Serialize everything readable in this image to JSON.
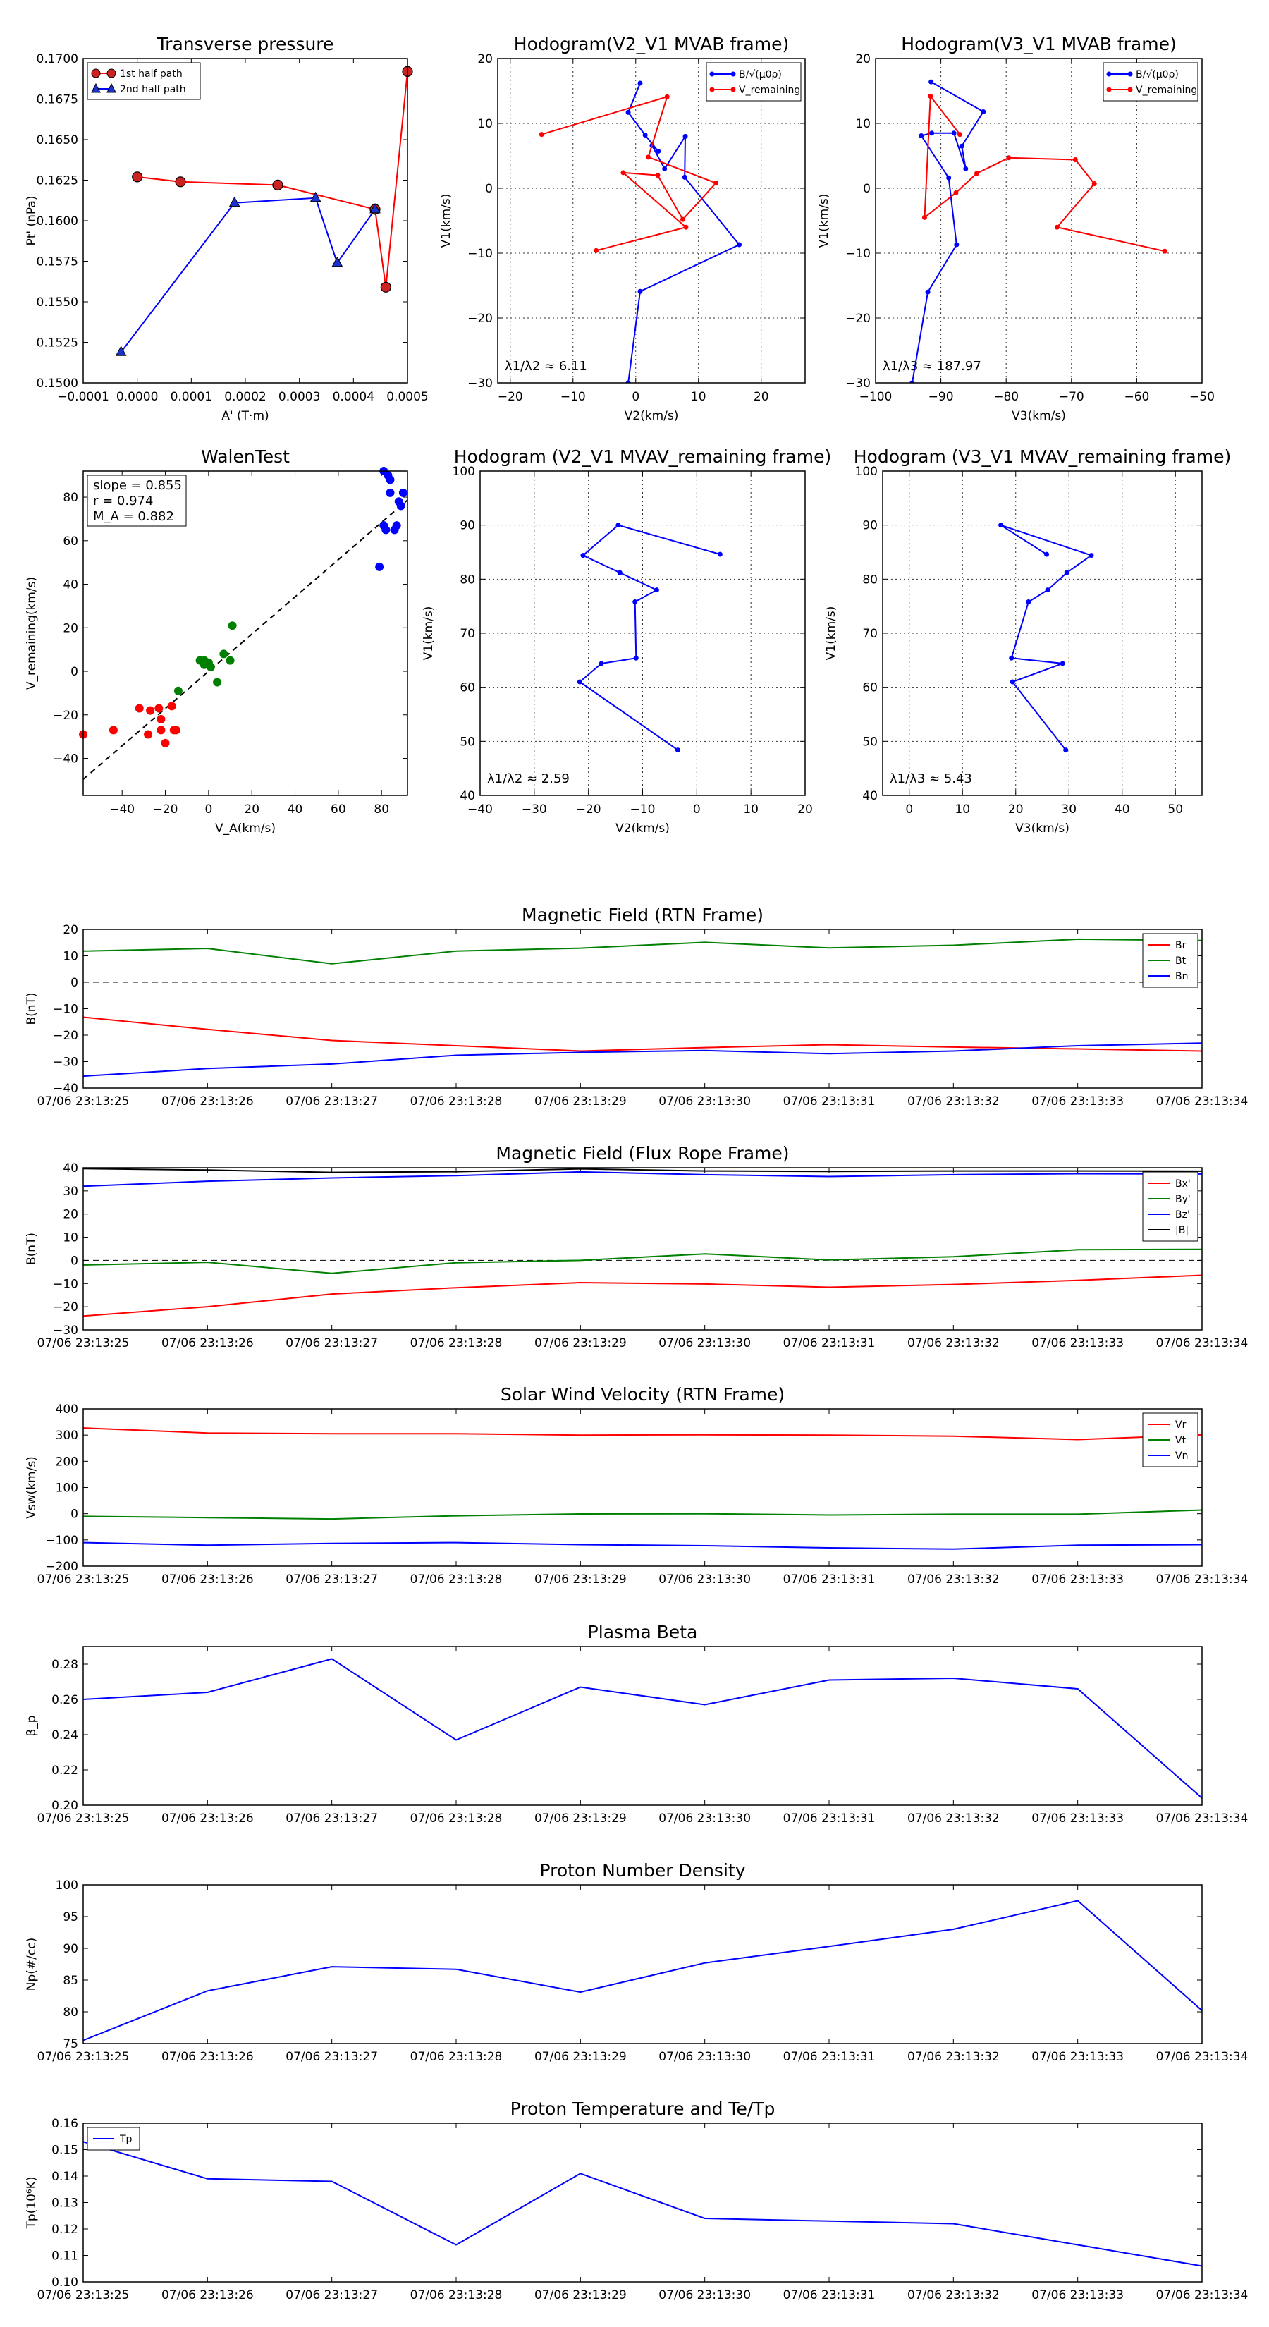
{
  "chart_data": [
    {
      "id": "tp",
      "type": "line",
      "title": "Transverse pressure",
      "xlabel": "A' (T·m)",
      "ylabel": "Pt' (nPa)",
      "xlim": [
        -0.0001,
        0.0005
      ],
      "ylim": [
        0.15,
        0.17
      ],
      "xticks": [
        -0.0001,
        0.0,
        0.0001,
        0.0002,
        0.0003,
        0.0004,
        0.0005
      ],
      "xtick_labels": [
        "−0.0001",
        "0.0000",
        "0.0001",
        "0.0002",
        "0.0003",
        "0.0004",
        "0.0005"
      ],
      "yticks": [
        0.15,
        0.1525,
        0.155,
        0.1575,
        0.16,
        0.1625,
        0.165,
        0.1675,
        0.17
      ],
      "ytick_labels": [
        "0.1500",
        "0.1525",
        "0.1550",
        "0.1575",
        "0.1600",
        "0.1625",
        "0.1650",
        "0.1675",
        "0.1700"
      ],
      "legend": "top-left",
      "series": [
        {
          "name": "1st half path",
          "color": "#ff0000",
          "marker": "circle",
          "x": [
            0.0,
            8e-05,
            0.00026,
            0.00044,
            0.00046,
            0.0005
          ],
          "y": [
            0.1627,
            0.1624,
            0.1622,
            0.1607,
            0.1559,
            0.1692
          ]
        },
        {
          "name": "2nd half path",
          "color": "#0000ff",
          "marker": "triangle",
          "x": [
            -3e-05,
            0.00018,
            0.00033,
            0.00037,
            0.00044
          ],
          "y": [
            0.1519,
            0.1611,
            0.1614,
            0.1574,
            0.1607
          ]
        }
      ]
    },
    {
      "id": "h1",
      "type": "line",
      "title": "Hodogram(V2_V1 MVAB frame)",
      "xlabel": "V2(km/s)",
      "ylabel": "V1(km/s)",
      "xlim": [
        -22,
        27
      ],
      "ylim": [
        -30,
        20
      ],
      "xticks": [
        -20,
        -10,
        0,
        10,
        20
      ],
      "yticks": [
        -30,
        -20,
        -10,
        0,
        10,
        20
      ],
      "grid": true,
      "legend": "top-right",
      "annotation": "λ1/λ2 ≈ 6.11",
      "series": [
        {
          "name": "B/√(μ0ρ)",
          "color": "#0000ff",
          "x": [
            0.7,
            -1.2,
            1.5,
            3.6,
            2.6,
            4.6,
            7.9,
            7.8,
            16.5,
            0.7,
            -1.2
          ],
          "y": [
            16.2,
            11.7,
            8.2,
            5.7,
            6.6,
            3.0,
            8.0,
            1.7,
            -8.7,
            -15.9,
            -30
          ]
        },
        {
          "name": "V_remaining",
          "color": "#ff0000",
          "x": [
            -15.0,
            5.0,
            2.0,
            12.8,
            7.5,
            3.5,
            -2.0,
            8.0,
            -6.3
          ],
          "y": [
            8.3,
            14.1,
            4.8,
            0.8,
            -4.8,
            2.0,
            2.4,
            -6.0,
            -9.6
          ]
        }
      ]
    },
    {
      "id": "h2",
      "type": "line",
      "title": "Hodogram(V3_V1 MVAB frame)",
      "xlabel": "V3(km/s)",
      "ylabel": "V1(km/s)",
      "xlim": [
        -100,
        -50
      ],
      "ylim": [
        -30,
        20
      ],
      "xticks": [
        -100,
        -90,
        -80,
        -70,
        -60,
        -50
      ],
      "yticks": [
        -30,
        -20,
        -10,
        0,
        10,
        20
      ],
      "grid": true,
      "legend": "top-right",
      "annotation": "λ1/λ3 ≈ 187.97",
      "series": [
        {
          "name": "B/√(μ0ρ)",
          "color": "#0000ff",
          "x": [
            -91.5,
            -83.5,
            -86.8,
            -86.2,
            -88.0,
            -91.4,
            -93.0,
            -88.8,
            -87.6,
            -92.0,
            -94.4
          ],
          "y": [
            16.4,
            11.8,
            6.5,
            3.0,
            8.5,
            8.5,
            8.1,
            1.6,
            -8.7,
            -16.0,
            -30
          ]
        },
        {
          "name": "V_remaining",
          "color": "#ff0000",
          "x": [
            -87.1,
            -91.6,
            -92.5,
            -87.7,
            -84.5,
            -79.6,
            -69.4,
            -66.5,
            -72.2,
            -55.7
          ],
          "y": [
            8.3,
            14.2,
            -4.5,
            -0.7,
            2.3,
            4.7,
            4.4,
            0.7,
            -6.0,
            -9.7
          ]
        }
      ]
    },
    {
      "id": "walen",
      "type": "scatter",
      "title": "WalenTest",
      "xlabel": "V_A(km/s)",
      "ylabel": "V_remaining(km/s)",
      "xlim": [
        -58,
        92
      ],
      "ylim": [
        -57,
        92
      ],
      "xticks": [
        -40,
        -20,
        0,
        20,
        40,
        60,
        80
      ],
      "yticks": [
        -40,
        -20,
        0,
        20,
        40,
        60,
        80
      ],
      "annotation_lines": [
        "slope = 0.855",
        "r = 0.974",
        "M_A = 0.882"
      ],
      "fit": {
        "slope": 0.855,
        "intercept": 0
      },
      "groups": [
        {
          "color": "#ff0000",
          "x": [
            -58,
            -44,
            -32,
            -28,
            -27,
            -23,
            -22,
            -22,
            -20,
            -17,
            -16,
            -15
          ],
          "y": [
            -29,
            -27,
            -17,
            -29,
            -18,
            -17,
            -22,
            -27,
            -33,
            -16,
            -27,
            -27
          ]
        },
        {
          "color": "#008000",
          "x": [
            -14,
            -4,
            -2,
            -2,
            0,
            1,
            4,
            7,
            10,
            11
          ],
          "y": [
            -9,
            5,
            3,
            5,
            4,
            2,
            -5,
            8,
            5,
            21
          ]
        },
        {
          "color": "#0000ff",
          "x": [
            79,
            81,
            81,
            82,
            83,
            84,
            84,
            86,
            87,
            88,
            89,
            90
          ],
          "y": [
            48,
            67,
            92,
            65,
            90,
            82,
            88,
            65,
            67,
            78,
            76,
            82
          ]
        }
      ]
    },
    {
      "id": "h3",
      "type": "line",
      "title": "Hodogram (V2_V1 MVAV_remaining frame)",
      "xlabel": "V2(km/s)",
      "ylabel": "V1(km/s)",
      "xlim": [
        -40,
        20
      ],
      "ylim": [
        40,
        100
      ],
      "xticks": [
        -40,
        -30,
        -20,
        -10,
        0,
        10,
        20
      ],
      "yticks": [
        40,
        50,
        60,
        70,
        80,
        90,
        100
      ],
      "grid": true,
      "annotation": "λ1/λ2 ≈ 2.59",
      "series": [
        {
          "name": "",
          "color": "#0000ff",
          "x": [
            4.3,
            -14.5,
            -21.0,
            -14.2,
            -7.4,
            -11.4,
            -11.2,
            -17.6,
            -21.6,
            -3.5
          ],
          "y": [
            84.6,
            90.0,
            84.4,
            81.2,
            78.0,
            75.8,
            65.4,
            64.4,
            61.0,
            48.4
          ]
        }
      ]
    },
    {
      "id": "h4",
      "type": "line",
      "title": "Hodogram (V3_V1 MVAV_remaining frame)",
      "xlabel": "V3(km/s)",
      "ylabel": "V1(km/s)",
      "xlim": [
        -5,
        55
      ],
      "ylim": [
        40,
        100
      ],
      "xticks": [
        0,
        10,
        20,
        30,
        40,
        50
      ],
      "yticks": [
        40,
        50,
        60,
        70,
        80,
        90,
        100
      ],
      "grid": true,
      "annotation": "λ1/λ3 ≈ 5.43",
      "series": [
        {
          "name": "",
          "color": "#0000ff",
          "x": [
            25.8,
            17.2,
            34.2,
            29.6,
            26.0,
            22.4,
            19.2,
            28.8,
            19.4,
            29.4
          ],
          "y": [
            84.6,
            90.0,
            84.4,
            81.2,
            78.0,
            75.8,
            65.4,
            64.4,
            61.0,
            48.4
          ]
        }
      ]
    },
    {
      "id": "b_rtn",
      "type": "line",
      "title": "Magnetic Field (RTN Frame)",
      "ylabel": "B(nT)",
      "ylim": [
        -40,
        20
      ],
      "yticks": [
        -40,
        -30,
        -20,
        -10,
        0,
        10,
        20
      ],
      "zero_line": true,
      "legend": "top-right",
      "x": [
        "07/06 23:13:25",
        "07/06 23:13:26",
        "07/06 23:13:27",
        "07/06 23:13:28",
        "07/06 23:13:29",
        "07/06 23:13:30",
        "07/06 23:13:31",
        "07/06 23:13:32",
        "07/06 23:13:33",
        "07/06 23:13:34"
      ],
      "series": [
        {
          "name": "Br",
          "color": "#ff0000",
          "values": [
            -13.2,
            -17.8,
            -22.0,
            -24.0,
            -26.0,
            -24.7,
            -23.6,
            -24.5,
            -25.2,
            -26.0
          ]
        },
        {
          "name": "Bt",
          "color": "#008000",
          "values": [
            11.8,
            12.8,
            7.0,
            11.8,
            12.9,
            15.1,
            13.0,
            14.0,
            16.3,
            15.8
          ]
        },
        {
          "name": "Bn",
          "color": "#0000ff",
          "values": [
            -35.5,
            -32.6,
            -30.9,
            -27.6,
            -26.5,
            -25.8,
            -27.0,
            -26.0,
            -24.0,
            -23.0
          ]
        }
      ]
    },
    {
      "id": "b_fr",
      "type": "line",
      "title": "Magnetic Field (Flux Rope Frame)",
      "ylabel": "B(nT)",
      "ylim": [
        -30,
        40
      ],
      "yticks": [
        -30,
        -20,
        -10,
        0,
        10,
        20,
        30,
        40
      ],
      "zero_line": true,
      "legend": "top-right",
      "x": [
        "07/06 23:13:25",
        "07/06 23:13:26",
        "07/06 23:13:27",
        "07/06 23:13:28",
        "07/06 23:13:29",
        "07/06 23:13:30",
        "07/06 23:13:31",
        "07/06 23:13:32",
        "07/06 23:13:33",
        "07/06 23:13:34"
      ],
      "series": [
        {
          "name": "Bx'",
          "color": "#ff0000",
          "values": [
            -24.0,
            -20.0,
            -14.5,
            -11.8,
            -9.6,
            -10.2,
            -11.6,
            -10.4,
            -8.6,
            -6.4
          ]
        },
        {
          "name": "By'",
          "color": "#008000",
          "values": [
            -2.0,
            -0.8,
            -5.6,
            -1.0,
            0.0,
            2.8,
            0.2,
            1.6,
            4.6,
            4.8
          ]
        },
        {
          "name": "Bz'",
          "color": "#0000ff",
          "values": [
            32.0,
            34.2,
            35.6,
            36.6,
            38.2,
            37.0,
            36.2,
            37.0,
            37.4,
            37.3
          ]
        },
        {
          "name": "|B|",
          "color": "#000000",
          "values": [
            39.6,
            39.0,
            38.0,
            38.3,
            39.5,
            38.6,
            38.4,
            38.6,
            38.6,
            38.5
          ]
        }
      ]
    },
    {
      "id": "vsw",
      "type": "line",
      "title": "Solar Wind Velocity (RTN Frame)",
      "ylabel": "Vsw(km/s)",
      "ylim": [
        -200,
        400
      ],
      "yticks": [
        -200,
        -100,
        0,
        100,
        200,
        300,
        400
      ],
      "legend": "top-right",
      "x": [
        "07/06 23:13:25",
        "07/06 23:13:26",
        "07/06 23:13:27",
        "07/06 23:13:28",
        "07/06 23:13:29",
        "07/06 23:13:30",
        "07/06 23:13:31",
        "07/06 23:13:32",
        "07/06 23:13:33",
        "07/06 23:13:34"
      ],
      "series": [
        {
          "name": "Vr",
          "color": "#ff0000",
          "values": [
            327,
            308,
            305,
            305,
            300,
            301,
            300,
            296,
            283,
            301
          ]
        },
        {
          "name": "Vt",
          "color": "#008000",
          "values": [
            -10,
            -15,
            -20,
            -8,
            -1,
            0,
            -5,
            -2,
            -2,
            14
          ]
        },
        {
          "name": "Vn",
          "color": "#0000ff",
          "values": [
            -110,
            -120,
            -113,
            -110,
            -118,
            -122,
            -130,
            -135,
            -120,
            -118
          ]
        }
      ]
    },
    {
      "id": "beta",
      "type": "line",
      "title": "Plasma Beta",
      "ylabel": "β_p",
      "ylim": [
        0.2,
        0.29
      ],
      "yticks": [
        0.2,
        0.22,
        0.24,
        0.26,
        0.28
      ],
      "ytick_labels": [
        "0.20",
        "0.22",
        "0.24",
        "0.26",
        "0.28"
      ],
      "x": [
        "07/06 23:13:25",
        "07/06 23:13:26",
        "07/06 23:13:27",
        "07/06 23:13:28",
        "07/06 23:13:29",
        "07/06 23:13:30",
        "07/06 23:13:31",
        "07/06 23:13:32",
        "07/06 23:13:33",
        "07/06 23:13:34"
      ],
      "series": [
        {
          "name": "beta",
          "color": "#0000ff",
          "values": [
            0.26,
            0.264,
            0.283,
            0.237,
            0.267,
            0.257,
            0.271,
            0.272,
            0.266,
            0.204
          ]
        }
      ]
    },
    {
      "id": "np",
      "type": "line",
      "title": "Proton Number Density",
      "ylabel": "Np(#/cc)",
      "ylim": [
        75,
        100
      ],
      "yticks": [
        75,
        80,
        85,
        90,
        95,
        100
      ],
      "x": [
        "07/06 23:13:25",
        "07/06 23:13:26",
        "07/06 23:13:27",
        "07/06 23:13:28",
        "07/06 23:13:29",
        "07/06 23:13:30",
        "07/06 23:13:31",
        "07/06 23:13:32",
        "07/06 23:13:33",
        "07/06 23:13:34"
      ],
      "series": [
        {
          "name": "Np",
          "color": "#0000ff",
          "values": [
            75.5,
            83.3,
            87.1,
            86.7,
            83.1,
            87.7,
            90.3,
            93.0,
            97.5,
            80.2
          ]
        }
      ]
    },
    {
      "id": "tp_temp",
      "type": "line",
      "title": "Proton Temperature and Te/Tp",
      "ylabel": "Tp(10⁶K)",
      "ylim": [
        0.1,
        0.16
      ],
      "yticks": [
        0.1,
        0.11,
        0.12,
        0.13,
        0.14,
        0.15,
        0.16
      ],
      "ytick_labels": [
        "0.10",
        "0.11",
        "0.12",
        "0.13",
        "0.14",
        "0.15",
        "0.16"
      ],
      "legend": "top-left",
      "x": [
        "07/06 23:13:25",
        "07/06 23:13:26",
        "07/06 23:13:27",
        "07/06 23:13:28",
        "07/06 23:13:29",
        "07/06 23:13:30",
        "07/06 23:13:31",
        "07/06 23:13:32",
        "07/06 23:13:33",
        "07/06 23:13:34"
      ],
      "series": [
        {
          "name": "Tp",
          "color": "#0000ff",
          "values": [
            0.153,
            0.139,
            0.138,
            0.114,
            0.141,
            0.124,
            0.123,
            0.122,
            0.114,
            0.106
          ]
        }
      ]
    }
  ]
}
